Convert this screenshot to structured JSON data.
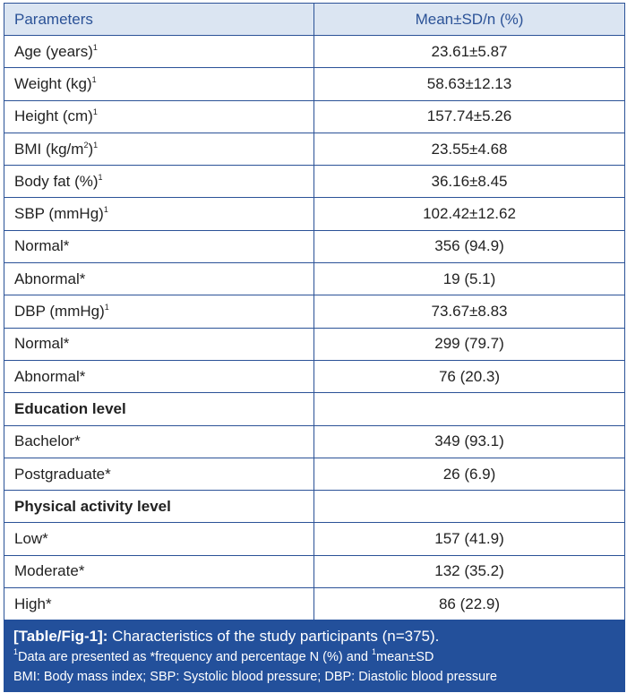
{
  "table": {
    "headers": [
      "Parameters",
      "Mean±SD/n (%)"
    ],
    "rows": [
      {
        "label": [
          {
            "t": "Age (years)"
          },
          {
            "sup": "1"
          }
        ],
        "value": "23.61±5.87"
      },
      {
        "label": [
          {
            "t": "Weight (kg)"
          },
          {
            "sup": "1"
          }
        ],
        "value": "58.63±12.13"
      },
      {
        "label": [
          {
            "t": "Height (cm)"
          },
          {
            "sup": "1"
          }
        ],
        "value": "157.74±5.26"
      },
      {
        "label": [
          {
            "t": "BMI (kg/m"
          },
          {
            "sup": "2"
          },
          {
            "t": ")"
          },
          {
            "sup": "1"
          }
        ],
        "value": "23.55±4.68"
      },
      {
        "label": [
          {
            "t": "Body fat (%)"
          },
          {
            "sup": "1"
          }
        ],
        "value": "36.16±8.45"
      },
      {
        "label": [
          {
            "t": "SBP (mmHg)"
          },
          {
            "sup": "1"
          }
        ],
        "value": "102.42±12.62"
      },
      {
        "label": [
          {
            "t": "Normal*"
          }
        ],
        "value": "356 (94.9)"
      },
      {
        "label": [
          {
            "t": "Abnormal*"
          }
        ],
        "value": "19 (5.1)"
      },
      {
        "label": [
          {
            "t": "DBP (mmHg)"
          },
          {
            "sup": "1"
          }
        ],
        "value": "73.67±8.83"
      },
      {
        "label": [
          {
            "t": "Normal*"
          }
        ],
        "value": "299 (79.7)"
      },
      {
        "label": [
          {
            "t": "Abnormal*"
          }
        ],
        "value": "76 (20.3)"
      },
      {
        "label": [
          {
            "t": "Education level"
          }
        ],
        "value": "",
        "bold": true
      },
      {
        "label": [
          {
            "t": "Bachelor*"
          }
        ],
        "value": "349 (93.1)"
      },
      {
        "label": [
          {
            "t": "Postgraduate*"
          }
        ],
        "value": "26 (6.9)"
      },
      {
        "label": [
          {
            "t": "Physical activity level"
          }
        ],
        "value": "",
        "bold": true
      },
      {
        "label": [
          {
            "t": "Low*"
          }
        ],
        "value": "157 (41.9)"
      },
      {
        "label": [
          {
            "t": "Moderate*"
          }
        ],
        "value": "132 (35.2)"
      },
      {
        "label": [
          {
            "t": "High*"
          }
        ],
        "value": "86 (22.9)"
      }
    ]
  },
  "caption": {
    "label": "[Table/Fig-1]:",
    "title": " Characteristics of the study participants (n=375).",
    "note1_sup": "1",
    "note1": "Data are presented as *frequency and percentage N (%) and ",
    "note1_sup2": "1",
    "note1_tail": "mean±SD",
    "note2": "BMI: Body mass index; SBP: Systolic blood pressure; DBP: Diastolic blood pressure"
  },
  "colors": {
    "header_bg": "#dbe5f2",
    "accent": "#23509b"
  }
}
